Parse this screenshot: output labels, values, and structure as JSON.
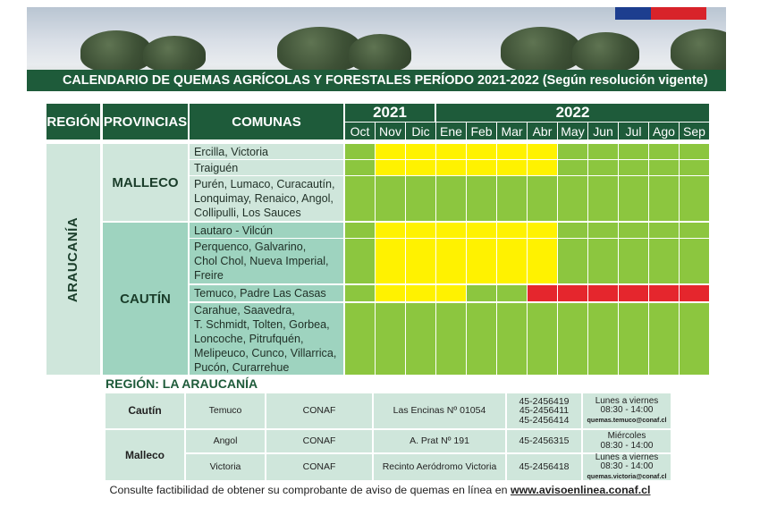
{
  "banner": {
    "title": "CALENDARIO DE QUEMAS AGRÍCOLAS Y FORESTALES PERÍODO 2021-2022 (Según resolución vigente)"
  },
  "calendar": {
    "headers": {
      "region": "REGIÓN",
      "provinces": "PROVINCIAS",
      "communes": "COMUNAS"
    },
    "years": [
      "2021",
      "2022"
    ],
    "months": [
      "Oct",
      "Nov",
      "Dic",
      "Ene",
      "Feb",
      "Mar",
      "Abr",
      "May",
      "Jun",
      "Jul",
      "Ago",
      "Sep"
    ],
    "region": "ARAUCANÍA",
    "provinces": [
      "MALLECO",
      "CAUTÍN"
    ],
    "rows": [
      {
        "commune": "Ercilla, Victoria",
        "status": [
          "g",
          "y",
          "y",
          "y",
          "y",
          "y",
          "y",
          "g",
          "g",
          "g",
          "g",
          "g"
        ]
      },
      {
        "commune": "Traiguén",
        "status": [
          "g",
          "y",
          "y",
          "y",
          "y",
          "y",
          "y",
          "g",
          "g",
          "g",
          "g",
          "g"
        ]
      },
      {
        "commune": "Purén, Lumaco, Curacautín,\nLonquimay, Renaico, Angol,\nCollipulli, Los Sauces",
        "status": [
          "g",
          "g",
          "g",
          "g",
          "g",
          "g",
          "g",
          "g",
          "g",
          "g",
          "g",
          "g"
        ]
      },
      {
        "commune": "Lautaro - Vilcún",
        "status": [
          "g",
          "y",
          "y",
          "y",
          "y",
          "y",
          "y",
          "g",
          "g",
          "g",
          "g",
          "g"
        ]
      },
      {
        "commune": "Perquenco, Galvarino,\nChol Chol, Nueva Imperial,\nFreire",
        "status": [
          "g",
          "y",
          "y",
          "y",
          "y",
          "y",
          "y",
          "g",
          "g",
          "g",
          "g",
          "g"
        ]
      },
      {
        "commune": "Temuco, Padre Las Casas",
        "status": [
          "g",
          "y",
          "y",
          "y",
          "g",
          "g",
          "r",
          "r",
          "r",
          "r",
          "r",
          "r"
        ]
      },
      {
        "commune": "Carahue, Saavedra,\nT. Schmidt, Tolten, Gorbea,\nLoncoche, Pitrufquén,\nMelipeuco, Cunco, Villarrica,\nPucón, Curarrehue",
        "status": [
          "g",
          "g",
          "g",
          "g",
          "g",
          "g",
          "g",
          "g",
          "g",
          "g",
          "g",
          "g"
        ]
      }
    ],
    "colors": {
      "g": "#8cc63f",
      "y": "#fff200",
      "r": "#e5262d",
      "header": "#1e5b3a",
      "light": "#cfe6db"
    }
  },
  "contacts": {
    "title": "REGIÓN: LA ARAUCANÍA",
    "rows": [
      {
        "province": "Cautín",
        "city": "Temuco",
        "org": "CONAF",
        "address": "Las Encinas Nº 01054",
        "phones": "45-2456419\n45-2456411\n45-2456414",
        "hours": "Lunes a viernes\n08:30 - 14:00",
        "email": "quemas.temuco@conaf.cl"
      },
      {
        "province": "Malleco",
        "city": "Angol",
        "org": "CONAF",
        "address": "A. Prat Nº 191",
        "phones": "45-2456315",
        "hours": "Miércoles\n08:30 - 14:00",
        "email": ""
      },
      {
        "province": "",
        "city": "Victoria",
        "org": "CONAF",
        "address": "Recinto Aeródromo Victoria",
        "phones": "45-2456418",
        "hours": "Lunes a viernes\n08:30 - 14:00",
        "email": "quemas.victoria@conaf.cl"
      }
    ]
  },
  "footer": {
    "text": "Consulte factibilidad de obtener su comprobante de aviso de quemas en línea en ",
    "link": "www.avisoenlinea.conaf.cl"
  }
}
